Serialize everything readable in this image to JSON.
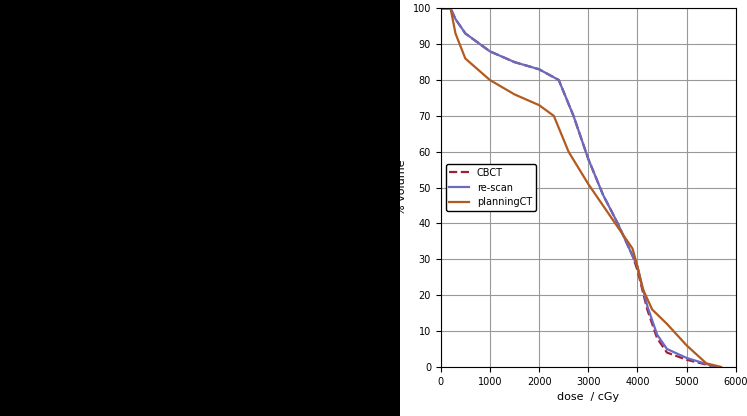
{
  "chart_data": {
    "type": "line",
    "xlabel": "dose  / cGy",
    "ylabel": "% volume",
    "xlim": [
      0,
      6000
    ],
    "xticks": [
      0,
      1000,
      2000,
      3000,
      4000,
      5000,
      6000
    ],
    "ylim": [
      0,
      100
    ],
    "yticks": [
      0,
      10,
      20,
      30,
      40,
      50,
      60,
      70,
      80,
      90,
      100
    ],
    "grid": true,
    "legend": "center left",
    "series": [
      {
        "name": "CBCT",
        "color": "#a0203a",
        "line_style": "dashed",
        "x": [
          0,
          200,
          300,
          500,
          1000,
          1500,
          2000,
          2400,
          2700,
          3000,
          3300,
          3600,
          3900,
          4000,
          4200,
          4400,
          4600,
          5000,
          5500,
          5600
        ],
        "values": [
          100,
          100,
          97,
          93,
          88,
          85,
          83,
          80,
          70,
          58,
          48,
          40,
          31,
          27,
          16,
          8,
          4,
          2,
          0.3,
          0
        ]
      },
      {
        "name": "re-scan",
        "color": "#6a6abf",
        "line_style": "solid",
        "x": [
          0,
          200,
          300,
          500,
          1000,
          1500,
          2000,
          2400,
          2700,
          3000,
          3300,
          3600,
          3900,
          4000,
          4200,
          4400,
          4600,
          5000,
          5500,
          5600
        ],
        "values": [
          100,
          100,
          97,
          93,
          88,
          85,
          83,
          80,
          70,
          58,
          48,
          40,
          31,
          28,
          17,
          9,
          5,
          2.5,
          0.4,
          0
        ]
      },
      {
        "name": "planningCT",
        "color": "#b35a1f",
        "line_style": "solid",
        "x": [
          0,
          200,
          300,
          500,
          1000,
          1500,
          2000,
          2300,
          2600,
          3000,
          3500,
          3900,
          4000,
          4100,
          4300,
          4600,
          5000,
          5400,
          5700
        ],
        "values": [
          100,
          100,
          93,
          86,
          80,
          76,
          73,
          70,
          60,
          51,
          41,
          33,
          28,
          22,
          16,
          12,
          6,
          1,
          0
        ]
      }
    ]
  }
}
